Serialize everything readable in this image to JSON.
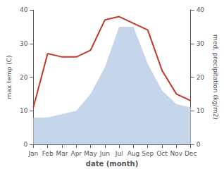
{
  "chart_data": {
    "type": "line",
    "categories": [
      "Jan",
      "Feb",
      "Mar",
      "Apr",
      "May",
      "Jun",
      "Jul",
      "Aug",
      "Sep",
      "Oct",
      "Nov",
      "Dec"
    ],
    "xlabel": "date (month)",
    "ylabel": "max temp (C)",
    "y2label": "med. precipitation (kg/m2)",
    "series": [
      {
        "type": "area",
        "color": "#c5d5ea",
        "axis": "y2",
        "values": [
          8,
          8,
          9,
          10,
          15,
          23,
          35,
          35,
          24,
          16,
          12,
          11
        ]
      },
      {
        "type": "line",
        "color": "#c0392b",
        "values": [
          11,
          27,
          26,
          26,
          28,
          37,
          38,
          36,
          34,
          22,
          15,
          13
        ]
      }
    ],
    "ylim": [
      0,
      40
    ],
    "yticks": [
      0,
      10,
      20,
      30,
      40
    ],
    "y2lim": [
      0,
      40
    ],
    "y2ticks": [
      0,
      10,
      20,
      30,
      40
    ],
    "grid": false
  }
}
